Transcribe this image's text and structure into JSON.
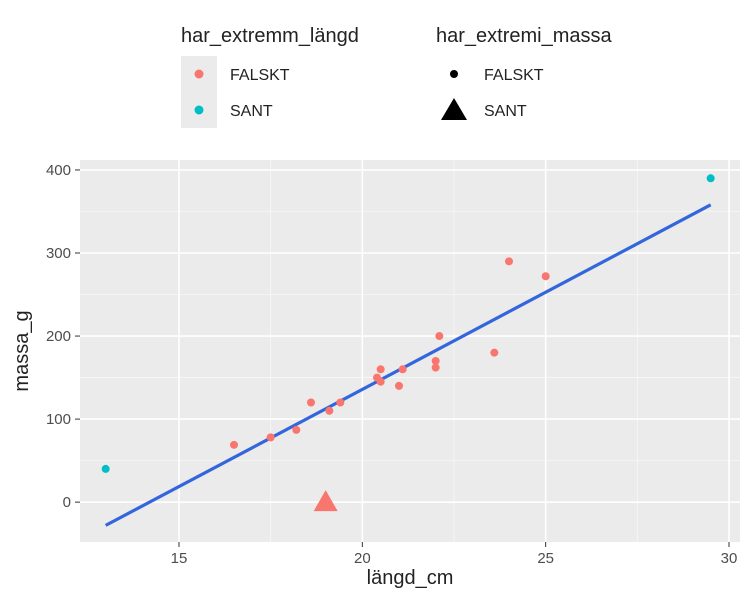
{
  "chart_data": {
    "type": "scatter",
    "xlabel": "längd_cm",
    "ylabel": "massa_g",
    "xlim": [
      12.3,
      30.3
    ],
    "ylim": [
      -48,
      412
    ],
    "x_ticks": [
      15,
      20,
      25,
      30
    ],
    "y_ticks": [
      0,
      100,
      200,
      300,
      400
    ],
    "x_tick_labels": [
      "15",
      "20",
      "25",
      "30"
    ],
    "y_tick_labels": [
      "0",
      "100",
      "200",
      "300",
      "400"
    ],
    "grid": true,
    "legend_position": "top",
    "legends": [
      {
        "title": "har_extremm_längd",
        "encoding": "color",
        "entries": [
          {
            "label": "FALSKT",
            "color": "#F8766D"
          },
          {
            "label": "SANT",
            "color": "#00BFC4"
          }
        ]
      },
      {
        "title": "har_extremi_massa",
        "encoding": "shape",
        "entries": [
          {
            "label": "FALSKT",
            "shape": "circle"
          },
          {
            "label": "SANT",
            "shape": "triangle"
          }
        ]
      }
    ],
    "points": [
      {
        "x": 13.0,
        "y": 40,
        "har_extremm_längd": "SANT",
        "har_extremi_massa": "FALSKT"
      },
      {
        "x": 16.5,
        "y": 69,
        "har_extremm_längd": "FALSKT",
        "har_extremi_massa": "FALSKT"
      },
      {
        "x": 17.5,
        "y": 78,
        "har_extremm_längd": "FALSKT",
        "har_extremi_massa": "FALSKT"
      },
      {
        "x": 18.2,
        "y": 87,
        "har_extremm_längd": "FALSKT",
        "har_extremi_massa": "FALSKT"
      },
      {
        "x": 18.6,
        "y": 120,
        "har_extremm_längd": "FALSKT",
        "har_extremi_massa": "FALSKT"
      },
      {
        "x": 19.0,
        "y": 0,
        "har_extremm_längd": "FALSKT",
        "har_extremi_massa": "SANT"
      },
      {
        "x": 19.1,
        "y": 110,
        "har_extremm_längd": "FALSKT",
        "har_extremi_massa": "FALSKT"
      },
      {
        "x": 19.4,
        "y": 120,
        "har_extremm_längd": "FALSKT",
        "har_extremi_massa": "FALSKT"
      },
      {
        "x": 20.4,
        "y": 150,
        "har_extremm_längd": "FALSKT",
        "har_extremi_massa": "FALSKT"
      },
      {
        "x": 20.5,
        "y": 145,
        "har_extremm_längd": "FALSKT",
        "har_extremi_massa": "FALSKT"
      },
      {
        "x": 20.5,
        "y": 160,
        "har_extremm_längd": "FALSKT",
        "har_extremi_massa": "FALSKT"
      },
      {
        "x": 21.0,
        "y": 140,
        "har_extremm_längd": "FALSKT",
        "har_extremi_massa": "FALSKT"
      },
      {
        "x": 21.1,
        "y": 160,
        "har_extremm_längd": "FALSKT",
        "har_extremi_massa": "FALSKT"
      },
      {
        "x": 22.0,
        "y": 162,
        "har_extremm_längd": "FALSKT",
        "har_extremi_massa": "FALSKT"
      },
      {
        "x": 22.0,
        "y": 170,
        "har_extremm_längd": "FALSKT",
        "har_extremi_massa": "FALSKT"
      },
      {
        "x": 22.1,
        "y": 200,
        "har_extremm_längd": "FALSKT",
        "har_extremi_massa": "FALSKT"
      },
      {
        "x": 23.6,
        "y": 180,
        "har_extremm_längd": "FALSKT",
        "har_extremi_massa": "FALSKT"
      },
      {
        "x": 24.0,
        "y": 290,
        "har_extremm_längd": "FALSKT",
        "har_extremi_massa": "FALSKT"
      },
      {
        "x": 25.0,
        "y": 272,
        "har_extremm_längd": "FALSKT",
        "har_extremi_massa": "FALSKT"
      },
      {
        "x": 29.5,
        "y": 390,
        "har_extremm_längd": "SANT",
        "har_extremi_massa": "FALSKT"
      }
    ],
    "trend_line": {
      "type": "linear",
      "color": "#3366DD",
      "x": [
        13.0,
        29.5
      ],
      "y": [
        -28,
        358
      ]
    }
  }
}
